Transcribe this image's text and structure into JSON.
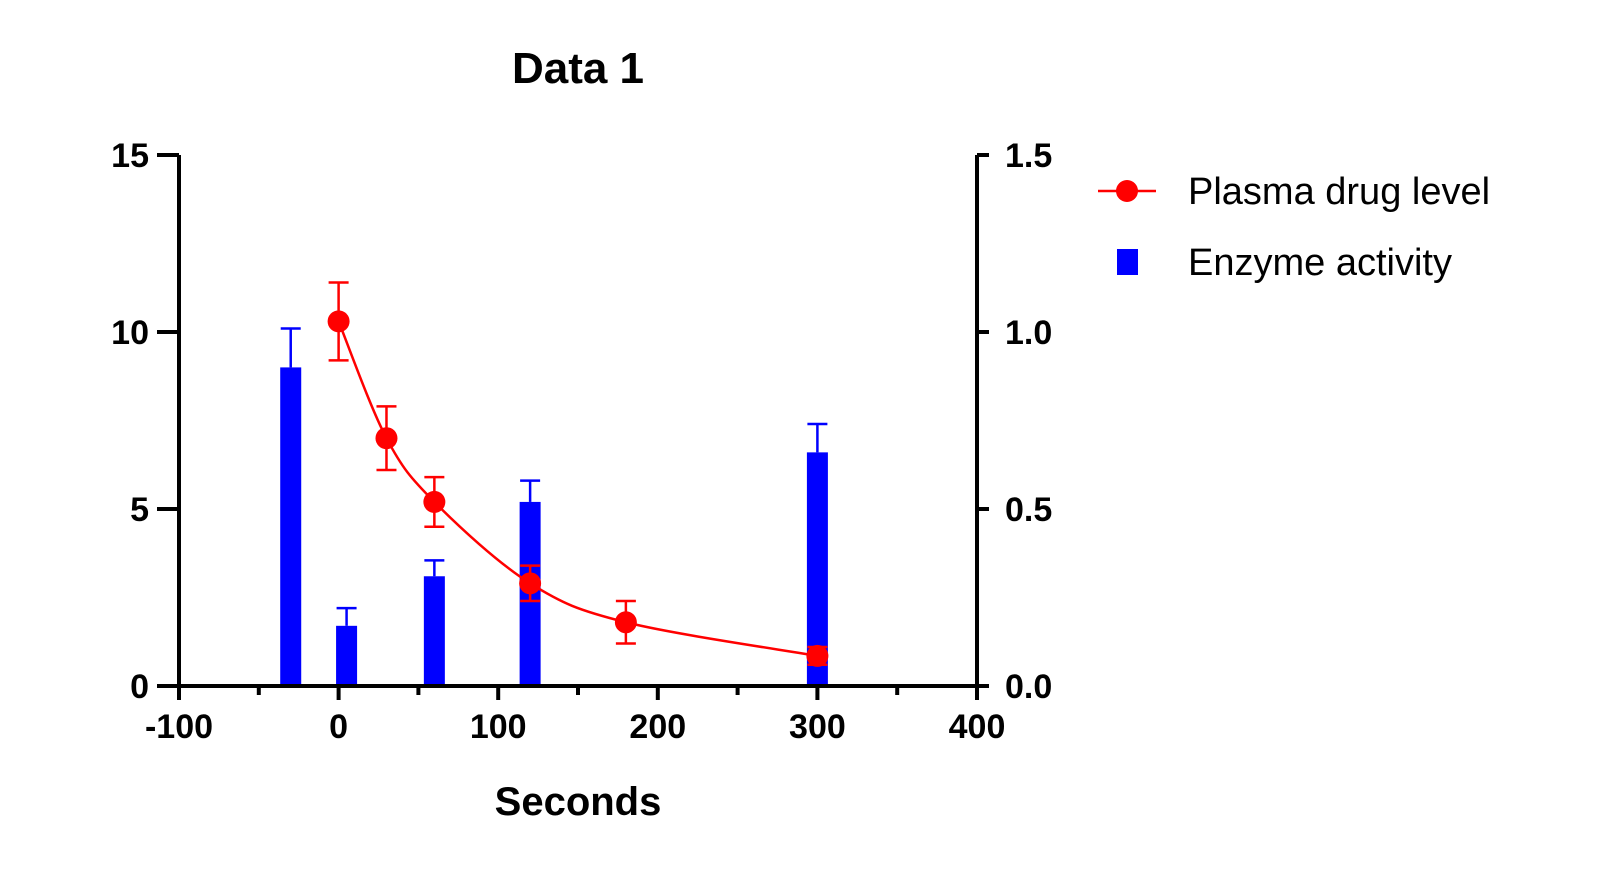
{
  "chart_data": {
    "type": "bar",
    "title": "Data 1",
    "xlabel": "Seconds",
    "ylabel_left": "",
    "ylabel_right": "",
    "xlim": [
      -100,
      400
    ],
    "x_ticks": [
      -100,
      0,
      100,
      200,
      300,
      400
    ],
    "x_tick_labels": [
      "-100",
      "0",
      "100",
      "200",
      "300",
      "400"
    ],
    "ylim_left": [
      0,
      15
    ],
    "y_left_ticks": [
      0,
      5,
      10,
      15
    ],
    "y_left_tick_labels": [
      "0",
      "5",
      "10",
      "15"
    ],
    "ylim_right": [
      0,
      1.5
    ],
    "y_right_ticks": [
      0,
      0.5,
      1.0,
      1.5
    ],
    "y_right_tick_labels": [
      "0.0",
      "0.5",
      "1.0",
      "1.5"
    ],
    "grid": false,
    "legend_position": "right",
    "series": [
      {
        "name": "Plasma drug level",
        "kind": "line-scatter",
        "axis": "left",
        "color": "#ff0000",
        "x": [
          0,
          30,
          60,
          120,
          180,
          300
        ],
        "y": [
          10.3,
          7.0,
          5.2,
          2.9,
          1.8,
          0.85
        ],
        "error": [
          1.1,
          0.9,
          0.7,
          0.5,
          0.6,
          0.25
        ],
        "fit_curve": true
      },
      {
        "name": "Enzyme activity",
        "kind": "bar",
        "axis": "right",
        "color": "#0000ff",
        "x": [
          -30,
          5,
          60,
          120,
          300
        ],
        "y": [
          0.9,
          0.17,
          0.31,
          0.52,
          0.66
        ],
        "error": [
          0.11,
          0.05,
          0.045,
          0.06,
          0.08
        ]
      }
    ]
  }
}
